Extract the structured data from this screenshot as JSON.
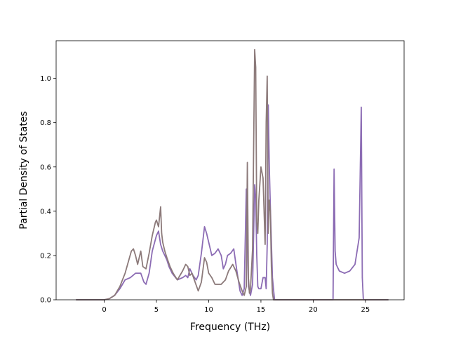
{
  "chart_data": {
    "type": "line",
    "title": "",
    "xlabel": "Frequency (THz)",
    "ylabel": "Partial Density of States",
    "xlim": [
      -4.6,
      28.7
    ],
    "ylim": [
      0,
      1.17
    ],
    "xticks": [
      0,
      5,
      10,
      15,
      20,
      25
    ],
    "yticks": [
      0.0,
      0.2,
      0.4,
      0.6,
      0.8,
      1.0
    ],
    "xtick_labels": [
      "0",
      "5",
      "10",
      "15",
      "20",
      "25"
    ],
    "ytick_labels": [
      "0.0",
      "0.2",
      "0.4",
      "0.6",
      "0.8",
      "1.0"
    ],
    "grid": false,
    "legend": null,
    "series": [
      {
        "color": "#8c6cb4",
        "x": [
          -2.7,
          0,
          0.5,
          1,
          1.5,
          2,
          2.5,
          3,
          3.2,
          3.5,
          3.8,
          4,
          4.3,
          4.6,
          5,
          5.2,
          5.4,
          5.6,
          5.8,
          6,
          6.2,
          6.5,
          7,
          7.5,
          7.8,
          8,
          8.2,
          8.5,
          8.8,
          9,
          9.3,
          9.6,
          9.8,
          10,
          10.3,
          10.6,
          10.9,
          11.2,
          11.4,
          11.6,
          11.8,
          12.1,
          12.4,
          12.7,
          13,
          13.2,
          13.4,
          13.6,
          13.8,
          14,
          14.2,
          14.4,
          14.5,
          14.6,
          14.7,
          14.8,
          15,
          15.2,
          15.4,
          15.5,
          15.6,
          15.7,
          15.8,
          15.9,
          16.1,
          16.3,
          21.9,
          22.0,
          22.1,
          22.2,
          22.5,
          23,
          23.5,
          24,
          24.4,
          24.6,
          24.7,
          24.8,
          24.9,
          27.2
        ],
        "y": [
          0,
          0,
          0.005,
          0.02,
          0.05,
          0.09,
          0.1,
          0.12,
          0.12,
          0.12,
          0.08,
          0.07,
          0.12,
          0.22,
          0.29,
          0.31,
          0.25,
          0.22,
          0.2,
          0.18,
          0.15,
          0.12,
          0.09,
          0.1,
          0.11,
          0.1,
          0.14,
          0.11,
          0.09,
          0.11,
          0.21,
          0.33,
          0.3,
          0.26,
          0.2,
          0.21,
          0.23,
          0.2,
          0.14,
          0.16,
          0.2,
          0.21,
          0.23,
          0.13,
          0.04,
          0.02,
          0.05,
          0.5,
          0.06,
          0.02,
          0.07,
          0.52,
          0.46,
          0.2,
          0.06,
          0.05,
          0.05,
          0.1,
          0.1,
          0.05,
          0.25,
          0.88,
          0.6,
          0.42,
          0.1,
          0,
          0,
          0.59,
          0.22,
          0.16,
          0.13,
          0.12,
          0.13,
          0.16,
          0.28,
          0.87,
          0.1,
          0,
          0,
          0
        ]
      },
      {
        "color": "#8c7a7a",
        "x": [
          -2.7,
          0,
          0.5,
          1,
          1.5,
          2,
          2.3,
          2.6,
          2.8,
          3,
          3.2,
          3.5,
          3.7,
          4,
          4.3,
          4.6,
          4.9,
          5,
          5.2,
          5.4,
          5.5,
          5.6,
          5.8,
          6,
          6.3,
          6.6,
          7,
          7.5,
          7.8,
          8,
          8.2,
          8.4,
          8.7,
          9,
          9.3,
          9.6,
          9.8,
          10,
          10.3,
          10.6,
          10.9,
          11.2,
          11.4,
          11.6,
          11.9,
          12.3,
          12.6,
          12.9,
          13.2,
          13.4,
          13.6,
          13.7,
          13.8,
          13.9,
          14.0,
          14.2,
          14.4,
          14.5,
          14.6,
          14.7,
          14.8,
          15,
          15.2,
          15.3,
          15.4,
          15.5,
          15.6,
          15.7,
          15.8,
          15.9,
          16,
          16.1,
          16.2,
          16.3,
          21.9,
          22.1,
          22.3,
          24.5,
          24.8,
          27.2
        ],
        "y": [
          0,
          0,
          0.005,
          0.02,
          0.06,
          0.12,
          0.17,
          0.22,
          0.23,
          0.2,
          0.16,
          0.22,
          0.15,
          0.14,
          0.21,
          0.29,
          0.35,
          0.36,
          0.33,
          0.42,
          0.3,
          0.26,
          0.22,
          0.19,
          0.15,
          0.12,
          0.09,
          0.13,
          0.16,
          0.15,
          0.11,
          0.12,
          0.08,
          0.04,
          0.08,
          0.19,
          0.17,
          0.12,
          0.1,
          0.07,
          0.07,
          0.07,
          0.08,
          0.09,
          0.13,
          0.16,
          0.13,
          0.08,
          0.04,
          0.02,
          0.06,
          0.62,
          0.1,
          0.03,
          0.05,
          0.23,
          1.13,
          1.05,
          0.35,
          0.3,
          0.45,
          0.6,
          0.55,
          0.4,
          0.25,
          0.8,
          1.01,
          0.3,
          0.45,
          0.4,
          0.15,
          0.03,
          0,
          0,
          0,
          0,
          0,
          0,
          0,
          0
        ]
      }
    ]
  }
}
